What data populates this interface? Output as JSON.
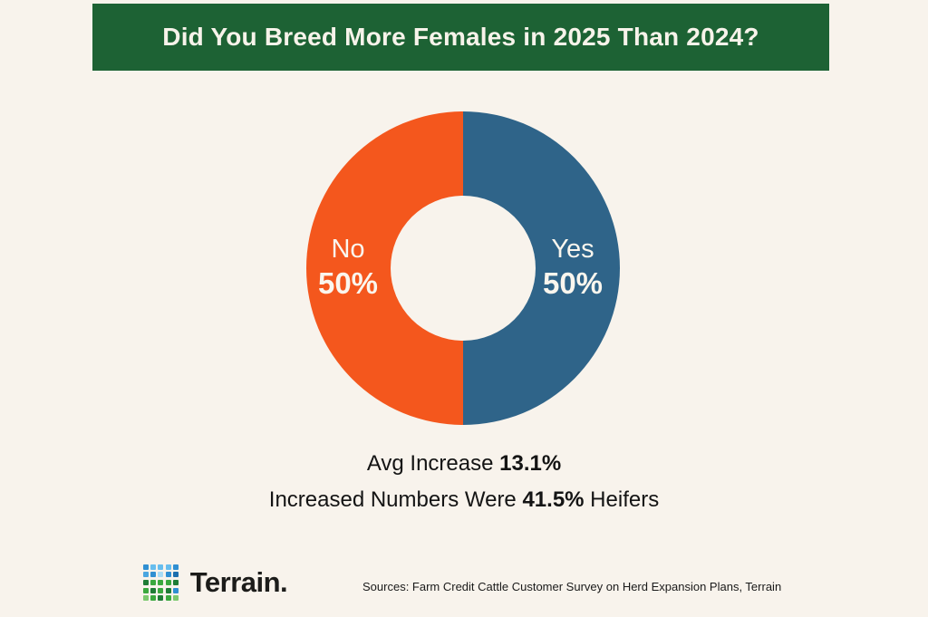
{
  "banner": {
    "title": "Did You Breed More Females in 2025 Than 2024?"
  },
  "chart_data": {
    "type": "pie",
    "donut": true,
    "title": "Did You Breed More Females in 2025 Than 2024?",
    "categories": [
      "Yes",
      "No"
    ],
    "values": [
      50,
      50
    ],
    "value_labels": [
      "50%",
      "50%"
    ],
    "colors": [
      "#2f6489",
      "#f4571d"
    ],
    "label_color": "#faf6ee",
    "legend_position": "none",
    "annotations": [
      "Avg Increase 13.1%",
      "Increased Numbers Were 41.5% Heifers"
    ]
  },
  "stats": {
    "line1": {
      "prefix": "Avg Increase ",
      "bold": "13.1%"
    },
    "line2": {
      "prefix": "Increased Numbers Were ",
      "bold": "41.5%",
      "suffix": " Heifers"
    }
  },
  "footer": {
    "brand": "Terrain.",
    "sources": "Sources: Farm Credit Cattle Customer Survey on Herd Expansion Plans, Terrain",
    "logo_grid": [
      [
        "#2f8fd2",
        "#66bdee",
        "#66bdee",
        "#66bdee",
        "#2f8fd2"
      ],
      [
        "#4aa6e0",
        "#2f8fd2",
        "#a8dcf6",
        "#2f8fd2",
        "#1d6fae"
      ],
      [
        "#1f7c36",
        "#3aa83e",
        "#3aa83e",
        "#3aa83e",
        "#1f7c36"
      ],
      [
        "#3aa83e",
        "#1f7c36",
        "#3aa83e",
        "#1f7c36",
        "#2f8fd2"
      ],
      [
        "#7cc96f",
        "#3aa83e",
        "#1f7c36",
        "#3aa83e",
        "#7cc96f"
      ]
    ]
  },
  "colors": {
    "background": "#f8f3ec",
    "banner_bg": "#1d6234",
    "banner_text": "#f7f3ea",
    "body_text": "#141414",
    "yes_slice": "#2f6489",
    "no_slice": "#f4571d"
  }
}
